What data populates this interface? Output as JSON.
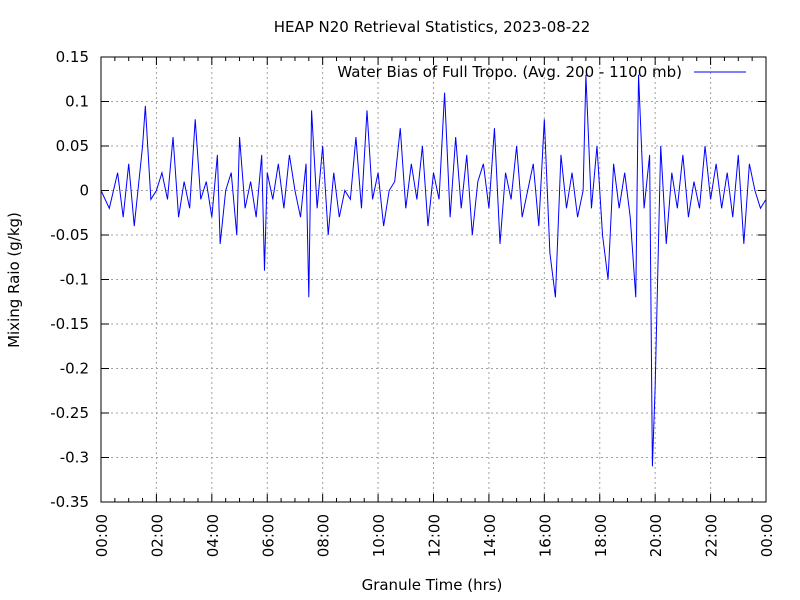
{
  "chart_data": {
    "type": "line",
    "title": "HEAP N20 Retrieval Statistics, 2023-08-22",
    "xlabel": "Granule Time (hrs)",
    "ylabel": "Mixing Raio (g/kg)",
    "xlim": [
      0,
      24
    ],
    "ylim": [
      -0.35,
      0.15
    ],
    "x_tick_labels": [
      "00:00",
      "02:00",
      "04:00",
      "06:00",
      "08:00",
      "10:00",
      "12:00",
      "14:00",
      "16:00",
      "18:00",
      "20:00",
      "22:00",
      "00:00"
    ],
    "x_ticks": [
      0,
      2,
      4,
      6,
      8,
      10,
      12,
      14,
      16,
      18,
      20,
      22,
      24
    ],
    "y_ticks": [
      -0.35,
      -0.3,
      -0.25,
      -0.2,
      -0.15,
      -0.1,
      -0.05,
      0,
      0.05,
      0.1,
      0.15
    ],
    "y_tick_labels": [
      "-0.35",
      "-0.3",
      "-0.25",
      "-0.2",
      "-0.15",
      "-0.1",
      "-0.05",
      "0",
      "0.05",
      "0.1",
      "0.15"
    ],
    "grid": true,
    "legend_position": "top-right",
    "series": [
      {
        "name": "Water Bias of Full Tropo. (Avg. 200 - 1100 mb)",
        "color": "#0000ff",
        "x": [
          0.0,
          0.3,
          0.6,
          0.8,
          1.0,
          1.2,
          1.5,
          1.6,
          1.8,
          2.0,
          2.2,
          2.4,
          2.6,
          2.8,
          3.0,
          3.2,
          3.4,
          3.6,
          3.8,
          4.0,
          4.2,
          4.3,
          4.5,
          4.7,
          4.9,
          5.0,
          5.2,
          5.4,
          5.6,
          5.8,
          5.9,
          6.0,
          6.2,
          6.4,
          6.6,
          6.8,
          7.0,
          7.2,
          7.4,
          7.5,
          7.6,
          7.8,
          8.0,
          8.2,
          8.4,
          8.6,
          8.8,
          9.0,
          9.2,
          9.4,
          9.6,
          9.8,
          10.0,
          10.2,
          10.4,
          10.6,
          10.8,
          11.0,
          11.2,
          11.4,
          11.6,
          11.8,
          12.0,
          12.2,
          12.4,
          12.6,
          12.8,
          13.0,
          13.2,
          13.4,
          13.6,
          13.8,
          14.0,
          14.2,
          14.4,
          14.6,
          14.8,
          15.0,
          15.2,
          15.4,
          15.6,
          15.8,
          16.0,
          16.2,
          16.4,
          16.6,
          16.8,
          17.0,
          17.2,
          17.4,
          17.5,
          17.7,
          17.9,
          18.1,
          18.3,
          18.5,
          18.7,
          18.9,
          19.1,
          19.3,
          19.4,
          19.6,
          19.8,
          19.9,
          20.0,
          20.2,
          20.4,
          20.6,
          20.8,
          21.0,
          21.2,
          21.4,
          21.6,
          21.8,
          22.0,
          22.2,
          22.4,
          22.6,
          22.8,
          23.0,
          23.2,
          23.4,
          23.6,
          23.8,
          24.0
        ],
        "values": [
          0.0,
          -0.02,
          0.02,
          -0.03,
          0.03,
          -0.04,
          0.05,
          0.095,
          -0.01,
          0.0,
          0.02,
          -0.01,
          0.06,
          -0.03,
          0.01,
          -0.02,
          0.08,
          -0.01,
          0.01,
          -0.03,
          0.04,
          -0.06,
          0.0,
          0.02,
          -0.05,
          0.06,
          -0.02,
          0.01,
          -0.03,
          0.04,
          -0.09,
          0.02,
          -0.01,
          0.03,
          -0.02,
          0.04,
          0.0,
          -0.03,
          0.03,
          -0.12,
          0.09,
          -0.02,
          0.05,
          -0.05,
          0.02,
          -0.03,
          0.0,
          -0.01,
          0.06,
          -0.02,
          0.09,
          -0.01,
          0.02,
          -0.04,
          0.0,
          0.01,
          0.07,
          -0.02,
          0.03,
          -0.01,
          0.05,
          -0.04,
          0.02,
          -0.01,
          0.11,
          -0.03,
          0.06,
          -0.02,
          0.04,
          -0.05,
          0.01,
          0.03,
          -0.02,
          0.07,
          -0.06,
          0.02,
          -0.01,
          0.05,
          -0.03,
          0.0,
          0.03,
          -0.04,
          0.08,
          -0.07,
          -0.12,
          0.04,
          -0.02,
          0.02,
          -0.03,
          0.0,
          0.13,
          -0.02,
          0.05,
          -0.05,
          -0.1,
          0.03,
          -0.02,
          0.02,
          -0.03,
          -0.12,
          0.13,
          -0.02,
          0.04,
          -0.31,
          -0.22,
          0.05,
          -0.06,
          0.02,
          -0.02,
          0.04,
          -0.03,
          0.01,
          -0.02,
          0.05,
          -0.01,
          0.03,
          -0.02,
          0.02,
          -0.03,
          0.04,
          -0.06,
          0.03,
          0.0,
          -0.02,
          -0.01
        ]
      }
    ]
  }
}
